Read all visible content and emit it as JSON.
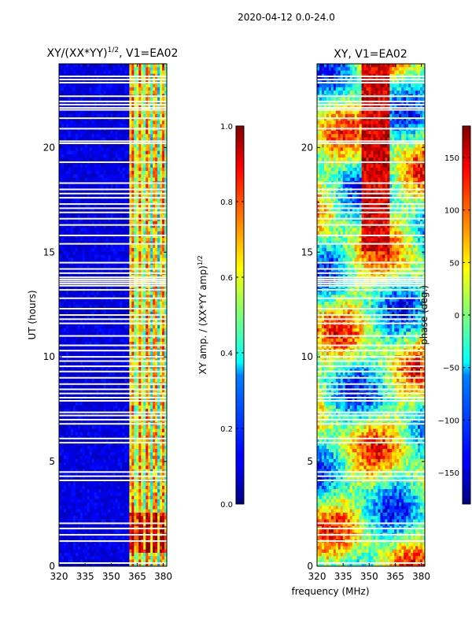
{
  "suptitle": "2020-04-12 0.0-24.0",
  "xlabel_shared": "frequency (MHz)",
  "chart_data": [
    {
      "type": "heatmap",
      "title_main": "XY/(XX*YY)",
      "title_sup": "1/2",
      "title_tail": ", V1=EA02",
      "xlabel": "",
      "ylabel": "UT (hours)",
      "xlim": [
        320,
        382
      ],
      "ylim": [
        0,
        24
      ],
      "xticks": [
        320,
        335,
        350,
        365,
        380
      ],
      "yticks": [
        0,
        5,
        10,
        15,
        20
      ],
      "colorbar": {
        "label_main": "XY amp. / (XX*YY amp)",
        "label_sup": "1/2",
        "range": [
          0.0,
          1.0
        ],
        "ticks": [
          "0.0",
          "0.2",
          "0.4",
          "0.6",
          "0.8",
          "1.0"
        ],
        "tick_values": [
          0.0,
          0.2,
          0.4,
          0.6,
          0.8,
          1.0
        ],
        "colormap": "jet"
      },
      "active_band_mhz": [
        360,
        382
      ],
      "flagged_rows_hours": [
        0.15,
        1.2,
        1.5,
        1.8,
        2.05,
        4.1,
        4.3,
        4.5,
        5.9,
        6.1,
        6.8,
        7.0,
        7.2,
        7.35,
        7.9,
        8.05,
        8.25,
        8.45,
        8.7,
        9.0,
        9.3,
        9.55,
        9.8,
        10.0,
        10.3,
        10.55,
        11.0,
        11.6,
        11.8,
        12.0,
        12.3,
        12.8,
        13.2,
        13.4,
        13.5,
        13.6,
        13.7,
        13.8,
        14.0,
        14.2,
        14.5,
        15.4,
        15.8,
        16.3,
        16.6,
        16.9,
        17.1,
        17.3,
        17.6,
        17.8,
        18.0,
        18.3,
        19.3,
        20.2,
        20.3,
        20.9,
        21.4,
        21.8,
        21.9,
        22.05,
        22.2,
        22.45,
        23.1,
        23.25,
        23.4
      ]
    },
    {
      "type": "heatmap",
      "title_main": "XY, V1=EA02",
      "xlabel": "frequency (MHz)",
      "ylabel": "",
      "xlim": [
        320,
        382
      ],
      "ylim": [
        0,
        24
      ],
      "xticks": [
        320,
        335,
        350,
        365,
        380
      ],
      "yticks": [
        0,
        5,
        10,
        15,
        20
      ],
      "colorbar": {
        "label_main": "phase (deg.)",
        "range": [
          -180,
          180
        ],
        "ticks": [
          "−150",
          "−100",
          "−50",
          "0",
          "50",
          "100",
          "150"
        ],
        "tick_values": [
          -150,
          -100,
          -50,
          0,
          50,
          100,
          150
        ],
        "colormap": "jet"
      },
      "flagged_rows_hours": [
        0.15,
        1.2,
        1.5,
        1.8,
        2.05,
        4.1,
        4.3,
        4.5,
        5.9,
        6.1,
        6.8,
        7.0,
        7.2,
        7.35,
        7.9,
        8.05,
        8.25,
        8.45,
        8.7,
        9.0,
        9.3,
        9.55,
        9.8,
        10.0,
        10.3,
        10.55,
        11.0,
        11.6,
        11.8,
        12.0,
        12.3,
        12.8,
        13.2,
        13.4,
        13.5,
        13.6,
        13.7,
        13.8,
        14.0,
        14.2,
        14.5,
        15.4,
        15.8,
        16.3,
        16.6,
        16.9,
        17.1,
        17.3,
        17.6,
        17.8,
        18.0,
        18.3,
        19.3,
        20.2,
        20.3,
        20.9,
        21.4,
        21.8,
        21.9,
        22.05,
        22.2,
        22.45,
        23.1,
        23.25,
        23.4
      ]
    }
  ]
}
